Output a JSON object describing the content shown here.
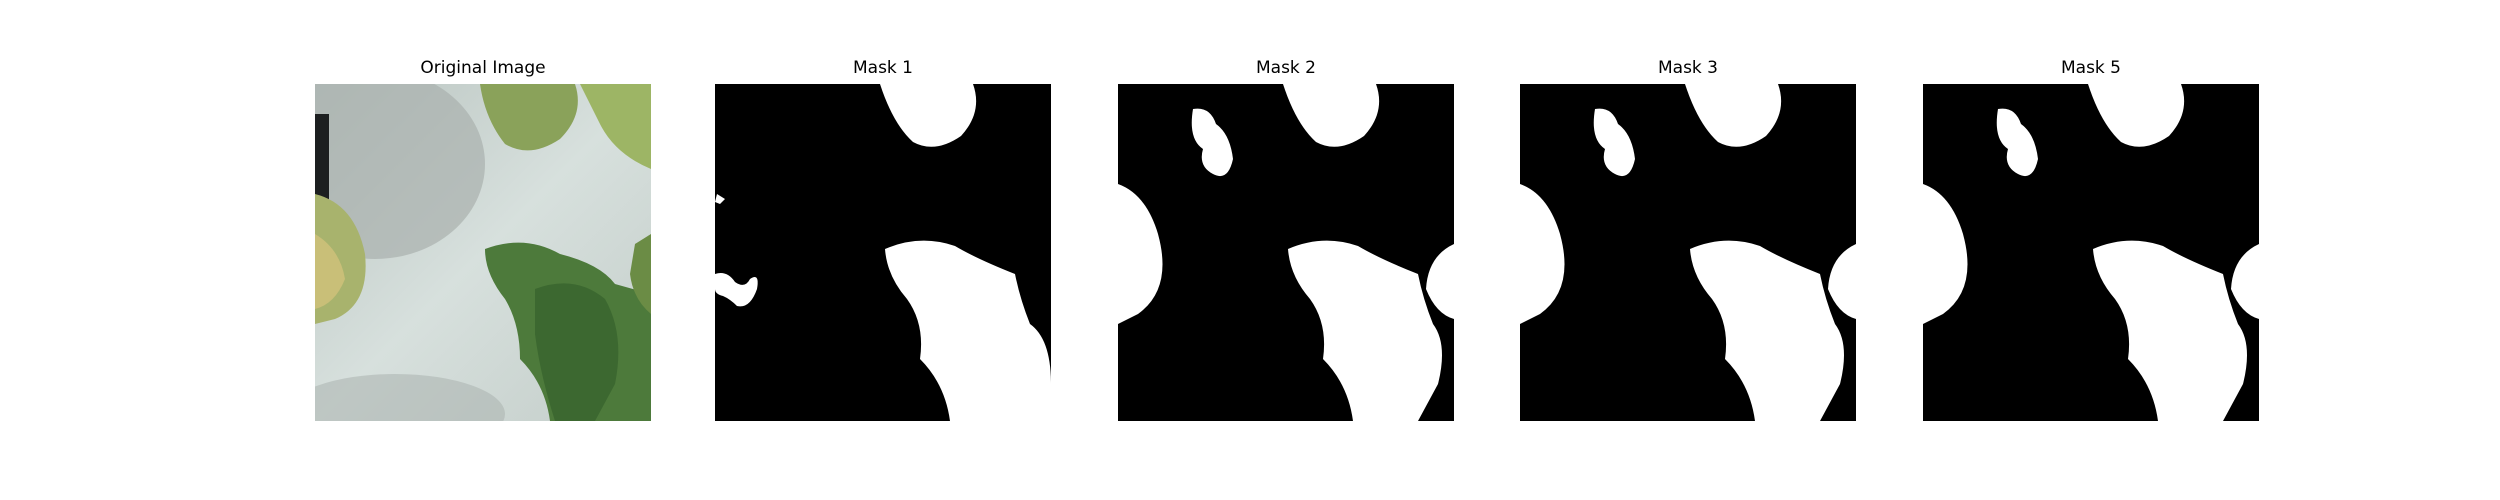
{
  "panels": [
    {
      "title": "Original Image",
      "kind": "photo"
    },
    {
      "title": "Mask 1",
      "kind": "mask"
    },
    {
      "title": "Mask 2",
      "kind": "mask"
    },
    {
      "title": "Mask 3",
      "kind": "mask"
    },
    {
      "title": "Mask 5",
      "kind": "mask"
    }
  ],
  "colors": {
    "background": "#ffffff",
    "mask_background": "#000000",
    "mask_foreground": "#ffffff",
    "photo_surface": "#c9d4d0",
    "leaf_light": "#9fb36a",
    "leaf_dark": "#3f6b34"
  }
}
